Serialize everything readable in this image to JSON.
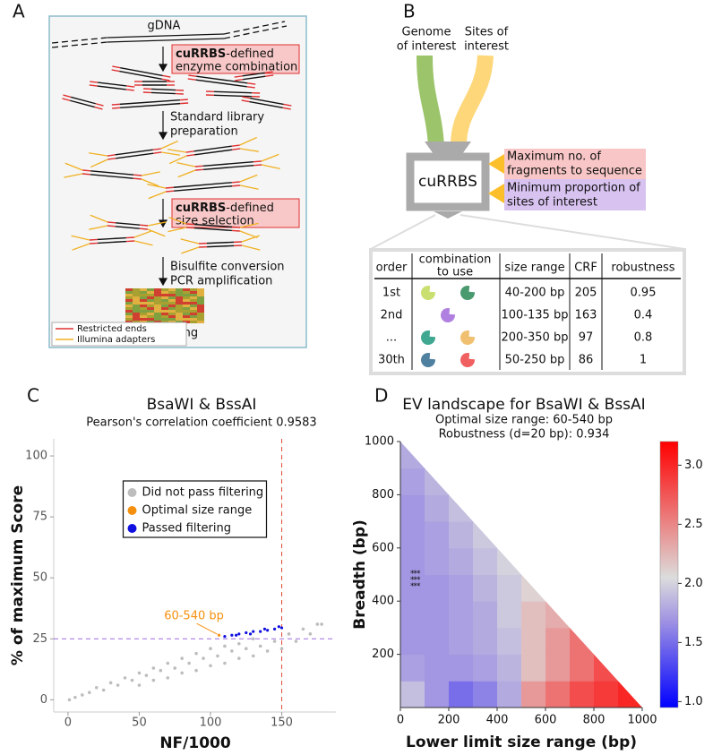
{
  "panel_labels": [
    "A",
    "B",
    "C",
    "D"
  ],
  "panel_a": {
    "gdna": "gDNA",
    "step1": {
      "bold": "cuRRBS",
      "rest": "-defined",
      "line2": "enzyme combination"
    },
    "step2": [
      "Standard library",
      "preparation"
    ],
    "step3": {
      "bold": "cuRRBS",
      "rest": "-defined",
      "line2": "size selection"
    },
    "step4": [
      "Bisulfite conversion",
      "PCR amplification"
    ],
    "output": "Sequencing",
    "legend": [
      "Restricted ends",
      "Illumina adapters"
    ]
  },
  "panel_b": {
    "inputs": [
      [
        "Genome",
        "of interest"
      ],
      [
        "Sites of",
        "interest"
      ]
    ],
    "tool": "cuRRBS",
    "parameters": [
      [
        "Maximum no. of",
        "fragments to sequence"
      ],
      [
        "Minimum proportion of",
        "sites of interest"
      ]
    ],
    "table": {
      "header": [
        "order",
        [
          "combination",
          "to use"
        ],
        "size range",
        "CRF",
        "robustness"
      ],
      "rows": [
        [
          "1st",
          "40-200 bp",
          205,
          0.95
        ],
        [
          "2nd",
          "100-135 bp",
          163,
          0.4
        ],
        [
          "...",
          "200-350 bp",
          97,
          0.8
        ],
        [
          "30th",
          "50-250 bp",
          86,
          1
        ]
      ]
    }
  },
  "chart_data": [
    {
      "type": "scatter",
      "title": "BsaWI & BssAI",
      "subtitle": "Pearson's correlation coefficient 0.9583",
      "xlabel": "NF/1000",
      "ylabel": "% of maximum Score",
      "xlim": [
        -10,
        188
      ],
      "ylim": [
        -5,
        107
      ],
      "xticks": [
        0,
        50,
        100,
        150
      ],
      "yticks": [
        0,
        25,
        50,
        75,
        100
      ],
      "legend": "upper center",
      "series": [
        {
          "name": "Did not pass filtering",
          "color": "#bdbdbd",
          "x": [
            1,
            5,
            10,
            15,
            20,
            25,
            30,
            35,
            40,
            45,
            50,
            50,
            55,
            60,
            60,
            65,
            70,
            70,
            75,
            80,
            80,
            85,
            90,
            90,
            95,
            100,
            100,
            105,
            110,
            110,
            115,
            120,
            120,
            125,
            130,
            130,
            135,
            140,
            145,
            150,
            155,
            160,
            165,
            170,
            175,
            178
          ],
          "values": [
            0,
            1,
            2,
            3,
            5,
            4,
            7,
            6,
            9,
            8,
            11,
            6,
            10,
            13,
            8,
            12,
            15,
            9,
            13,
            17,
            11,
            15,
            19,
            12,
            17,
            21,
            14,
            18,
            22,
            15,
            20,
            23,
            17,
            21,
            25,
            18,
            22,
            20,
            24,
            21,
            27,
            24,
            29,
            27,
            31,
            31
          ]
        },
        {
          "name": "Optimal size range",
          "color": "#f5900f",
          "x": [
            106
          ],
          "values": [
            26.5
          ]
        },
        {
          "name": "Passed filtering",
          "color": "#1010e0",
          "x": [
            110,
            115,
            118,
            120,
            125,
            128,
            130,
            135,
            138,
            140,
            145,
            148,
            150
          ],
          "values": [
            26,
            26.5,
            26.5,
            27,
            27.5,
            27,
            28,
            28,
            29,
            28.5,
            29,
            30,
            29.5
          ]
        }
      ],
      "reference_lines": [
        {
          "x": 150,
          "color": "#e04a3a"
        },
        {
          "y": 25,
          "color": "#9b6be0"
        }
      ],
      "annotation": {
        "text": "60-540 bp",
        "color": "#f5900f"
      }
    },
    {
      "type": "heatmap",
      "title": "EV landscape for BsaWI & BssAI",
      "subtitle": [
        "Optimal size range: 60-540 bp",
        "Robustness (d=20 bp): 0.934"
      ],
      "xlabel": "Lower limit size range (bp)",
      "ylabel": "Breadth (bp)",
      "xlim": [
        0,
        1000
      ],
      "ylim": [
        0,
        1000
      ],
      "xticks": [
        0,
        200,
        400,
        600,
        800,
        1000
      ],
      "yticks": [
        200,
        400,
        600,
        800,
        1000
      ],
      "x_edges": [
        0,
        100,
        200,
        300,
        400,
        500,
        600,
        700,
        800,
        900,
        1000
      ],
      "y_edges": [
        0,
        100,
        200,
        300,
        400,
        500,
        600,
        700,
        800,
        900,
        1000
      ],
      "z": [
        [
          1.9,
          1.7,
          1.5,
          1.6,
          1.8,
          2.4,
          2.6,
          2.8,
          2.9,
          3.0
        ],
        [
          1.75,
          1.7,
          1.7,
          1.75,
          1.85,
          2.2,
          2.4,
          2.6,
          2.8,
          null
        ],
        [
          1.7,
          1.7,
          1.75,
          1.8,
          1.9,
          2.2,
          2.4,
          2.6,
          null,
          null
        ],
        [
          1.7,
          1.7,
          1.75,
          1.8,
          1.95,
          2.2,
          2.3,
          null,
          null,
          null
        ],
        [
          1.7,
          1.7,
          1.75,
          1.85,
          1.95,
          2.1,
          null,
          null,
          null,
          null
        ],
        [
          1.7,
          1.75,
          1.8,
          1.9,
          2.0,
          null,
          null,
          null,
          null,
          null
        ],
        [
          1.7,
          1.75,
          1.85,
          1.95,
          null,
          null,
          null,
          null,
          null,
          null
        ],
        [
          1.7,
          1.8,
          1.9,
          null,
          null,
          null,
          null,
          null,
          null,
          null
        ],
        [
          1.75,
          1.85,
          null,
          null,
          null,
          null,
          null,
          null,
          null,
          null
        ],
        [
          1.8,
          null,
          null,
          null,
          null,
          null,
          null,
          null,
          null,
          null
        ]
      ],
      "zlim": [
        0.95,
        3.2
      ],
      "zticks": [
        {
          "value": 1,
          "label": "1.0"
        },
        1.5,
        {
          "value": 2,
          "label": "2.0"
        },
        2.5,
        {
          "value": 3,
          "label": "3.0"
        }
      ],
      "colorscale": [
        {
          "value": 0.95,
          "color": "#0000ff"
        },
        {
          "value": 1.7,
          "color": "#a396e2"
        },
        {
          "value": 2.05,
          "color": "#dcdcdc"
        },
        {
          "value": 3.2,
          "color": "#ff0000"
        }
      ],
      "optimum": {
        "x": 60,
        "y": 480,
        "marker": "***"
      }
    }
  ]
}
